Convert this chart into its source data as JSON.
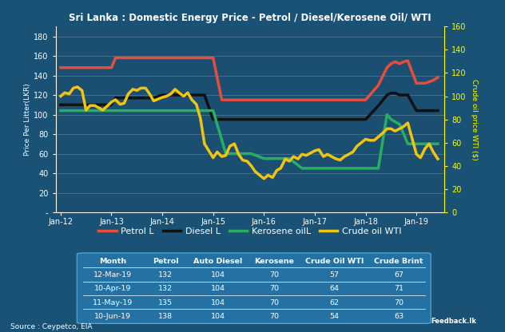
{
  "title": "Sri Lanka : Domestic Energy Price - Petrol / Diesel/Kerosene Oil/ WTI",
  "bg_color": "#1a5276",
  "plot_bg_color": "#1a4f72",
  "ylabel_left": "Price Per Litter(LKR)",
  "ylabel_right": "Crude oil price WTI ($)",
  "source": "Source : Ceypetco, EIA",
  "ylim_left": [
    0,
    190
  ],
  "ylim_right": [
    0,
    160
  ],
  "yticks_left": [
    0,
    20,
    40,
    60,
    80,
    100,
    120,
    140,
    160,
    180
  ],
  "ytick_labels_left": [
    "-",
    "20",
    "40",
    "60",
    "80",
    "100",
    "120",
    "140",
    "160",
    "180"
  ],
  "yticks_right": [
    0,
    20,
    40,
    60,
    80,
    100,
    120,
    140,
    160
  ],
  "xtick_labels": [
    "Jan-12",
    "Jan-13",
    "Jan-14",
    "Jan-15",
    "Jan-16",
    "Jan-17",
    "Jan-18",
    "Jan-19"
  ],
  "xtick_positions": [
    2012,
    2013,
    2014,
    2015,
    2016,
    2017,
    2018,
    2019
  ],
  "legend": [
    {
      "label": "Petrol L",
      "color": "#e74c3c",
      "lw": 2.5
    },
    {
      "label": "Diesel L",
      "color": "#111111",
      "lw": 2.5
    },
    {
      "label": "Kerosene oilL",
      "color": "#27ae60",
      "lw": 2.5
    },
    {
      "label": "Crude oil WTI",
      "color": "#f1c40f",
      "lw": 2.5
    }
  ],
  "table_headers": [
    "Month",
    "Petrol",
    "Auto Diesel",
    "Kerosene",
    "Crude Oil WTI",
    "Crude Brint"
  ],
  "table_data": [
    [
      "12-Mar-19",
      "132",
      "104",
      "70",
      "57",
      "67"
    ],
    [
      "10-Apr-19",
      "132",
      "104",
      "70",
      "64",
      "71"
    ],
    [
      "11-May-19",
      "135",
      "104",
      "70",
      "62",
      "70"
    ],
    [
      "10-Jun-19",
      "138",
      "104",
      "70",
      "54",
      "63"
    ]
  ],
  "petrol_x": [
    2012.0,
    2012.17,
    2012.5,
    2012.67,
    2013.0,
    2013.08,
    2013.25,
    2013.42,
    2013.67,
    2013.83,
    2014.0,
    2014.17,
    2014.33,
    2014.5,
    2014.67,
    2014.75,
    2014.83,
    2015.0,
    2015.17,
    2015.5,
    2015.75,
    2016.0,
    2016.25,
    2016.5,
    2016.75,
    2017.0,
    2017.25,
    2017.5,
    2017.75,
    2018.0,
    2018.25,
    2018.42,
    2018.5,
    2018.58,
    2018.67,
    2018.75,
    2018.83,
    2019.0,
    2019.17,
    2019.33,
    2019.42
  ],
  "petrol_y": [
    148,
    148,
    148,
    148,
    148,
    158,
    158,
    158,
    158,
    158,
    158,
    158,
    158,
    158,
    158,
    158,
    158,
    158,
    115,
    115,
    115,
    115,
    115,
    115,
    115,
    115,
    115,
    115,
    115,
    115,
    130,
    148,
    152,
    154,
    152,
    154,
    155,
    132,
    132,
    135,
    138
  ],
  "diesel_x": [
    2012.0,
    2012.17,
    2012.5,
    2012.67,
    2013.0,
    2013.08,
    2013.25,
    2013.42,
    2013.67,
    2013.83,
    2014.0,
    2014.17,
    2014.33,
    2014.5,
    2014.67,
    2014.75,
    2014.83,
    2015.0,
    2015.17,
    2015.5,
    2015.75,
    2016.0,
    2016.25,
    2016.5,
    2016.75,
    2017.0,
    2017.25,
    2017.5,
    2017.75,
    2018.0,
    2018.25,
    2018.42,
    2018.5,
    2018.58,
    2018.67,
    2018.75,
    2018.83,
    2019.0,
    2019.17,
    2019.33,
    2019.42
  ],
  "diesel_y": [
    110,
    110,
    110,
    110,
    110,
    117,
    117,
    117,
    117,
    117,
    120,
    120,
    120,
    120,
    120,
    120,
    120,
    95,
    95,
    95,
    95,
    95,
    95,
    95,
    95,
    95,
    95,
    95,
    95,
    95,
    109,
    120,
    122,
    122,
    120,
    120,
    120,
    104,
    104,
    104,
    104
  ],
  "kero_x": [
    2012.0,
    2012.25,
    2012.5,
    2012.75,
    2013.0,
    2013.25,
    2013.5,
    2013.75,
    2014.0,
    2014.25,
    2014.5,
    2014.75,
    2015.0,
    2015.25,
    2015.5,
    2015.75,
    2016.0,
    2016.25,
    2016.5,
    2016.75,
    2017.0,
    2017.25,
    2017.5,
    2017.75,
    2018.0,
    2018.08,
    2018.25,
    2018.42,
    2018.5,
    2018.67,
    2018.75,
    2018.83,
    2019.0,
    2019.17,
    2019.33,
    2019.42
  ],
  "kero_y": [
    104,
    104,
    104,
    104,
    104,
    104,
    104,
    104,
    104,
    104,
    104,
    104,
    104,
    60,
    60,
    60,
    55,
    55,
    55,
    45,
    45,
    45,
    45,
    45,
    45,
    45,
    45,
    100,
    95,
    90,
    80,
    70,
    70,
    70,
    70,
    70
  ],
  "wti_x": [
    2012.0,
    2012.08,
    2012.17,
    2012.25,
    2012.33,
    2012.42,
    2012.5,
    2012.58,
    2012.67,
    2012.75,
    2012.83,
    2013.0,
    2013.08,
    2013.17,
    2013.25,
    2013.33,
    2013.42,
    2013.5,
    2013.58,
    2013.67,
    2013.75,
    2013.83,
    2014.0,
    2014.08,
    2014.17,
    2014.25,
    2014.33,
    2014.42,
    2014.5,
    2014.58,
    2014.67,
    2014.75,
    2014.83,
    2015.0,
    2015.08,
    2015.17,
    2015.25,
    2015.33,
    2015.42,
    2015.5,
    2015.58,
    2015.67,
    2015.75,
    2015.83,
    2016.0,
    2016.08,
    2016.17,
    2016.25,
    2016.33,
    2016.42,
    2016.5,
    2016.58,
    2016.67,
    2016.75,
    2016.83,
    2017.0,
    2017.08,
    2017.17,
    2017.25,
    2017.33,
    2017.42,
    2017.5,
    2017.58,
    2017.67,
    2017.75,
    2017.83,
    2018.0,
    2018.08,
    2018.17,
    2018.25,
    2018.33,
    2018.42,
    2018.5,
    2018.58,
    2018.67,
    2018.75,
    2018.83,
    2019.0,
    2019.08,
    2019.17,
    2019.25,
    2019.33,
    2019.42
  ],
  "wti_y": [
    100,
    103,
    102,
    107,
    108,
    105,
    88,
    92,
    92,
    90,
    88,
    95,
    97,
    93,
    94,
    102,
    106,
    105,
    107,
    107,
    102,
    96,
    99,
    100,
    102,
    106,
    103,
    100,
    103,
    97,
    93,
    81,
    59,
    47,
    52,
    48,
    49,
    57,
    59,
    50,
    45,
    44,
    40,
    35,
    29,
    32,
    30,
    36,
    38,
    46,
    44,
    48,
    46,
    50,
    49,
    53,
    54,
    48,
    50,
    48,
    46,
    45,
    48,
    50,
    52,
    57,
    63,
    62,
    62,
    65,
    68,
    72,
    72,
    70,
    72,
    74,
    77,
    50,
    47,
    55,
    59,
    52,
    46
  ]
}
